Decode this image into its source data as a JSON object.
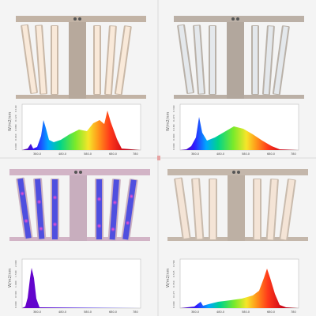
{
  "quadrants": [
    {
      "id": "top-left",
      "fixture": "full-spectrum warm white with red",
      "ylabel": "W/m2/nm",
      "xticks": [
        "380.0",
        "480.0",
        "580.0",
        "680.0",
        "780"
      ],
      "yticks": [
        "0.000",
        "0.040",
        "0.080",
        "0.120",
        "0.160"
      ],
      "colors": {
        "strip": "#f7e6d4",
        "frame": "#c8b8a8"
      }
    },
    {
      "id": "top-right",
      "fixture": "full-spectrum cool white",
      "ylabel": "W/m2/nm",
      "xticks": [
        "380.0",
        "480.0",
        "580.0",
        "680.0",
        "780"
      ],
      "yticks": [
        "0.000",
        "0.090",
        "0.180",
        "0.270",
        "0.360"
      ],
      "colors": {
        "strip": "#dfe3e6",
        "frame": "#bdb4aa"
      }
    },
    {
      "id": "bottom-left",
      "fixture": "blue-violet with UV",
      "ylabel": "W/m2/nm",
      "xticks": [
        "380.0",
        "480.0",
        "580.0",
        "680.0",
        "780"
      ],
      "yticks": [
        "0.000",
        "0.500",
        "1.000",
        "1.500",
        "2.000"
      ],
      "colors": {
        "strip": "#4b4bd8",
        "frame": "#d9b7c9"
      }
    },
    {
      "id": "bottom-right",
      "fixture": "full-spectrum warm red-heavy",
      "ylabel": "W/m2/nm",
      "xticks": [
        "380.0",
        "480.0",
        "580.0",
        "680.0",
        "780"
      ],
      "yticks": [
        "0.000",
        "0.175",
        "0.350",
        "0.525",
        "0.700"
      ],
      "colors": {
        "strip": "#f2e3d5",
        "frame": "#cbbcae"
      }
    }
  ]
}
